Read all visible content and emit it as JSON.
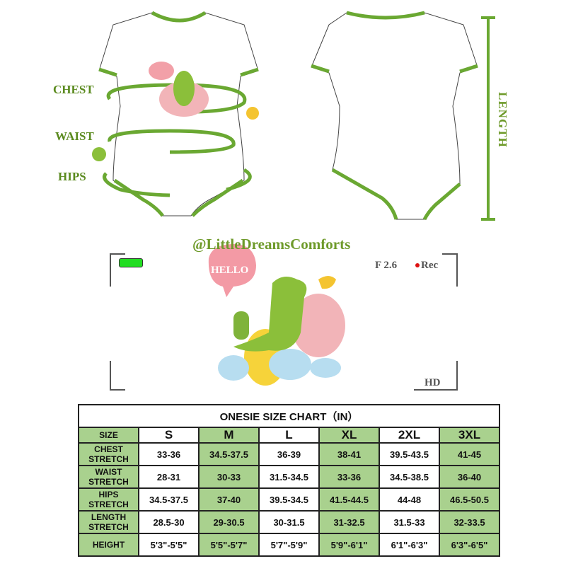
{
  "illustration": {
    "labels": {
      "chest": "CHEST",
      "waist": "WAIST",
      "hips": "HIPS",
      "length": "LENGTH"
    },
    "speech_bubble": "HELLO",
    "handle": "@LittleDreamsComforts",
    "viewfinder": {
      "aperture": "F 2.6",
      "rec": "Rec",
      "quality": "HD",
      "battery_color": "#22dd22",
      "rec_color": "#dd1111"
    },
    "trim_color": "#6aa832"
  },
  "size_chart": {
    "title": "ONESIE SIZE CHART（IN）",
    "header": {
      "label": "SIZE",
      "sizes": [
        "S",
        "M",
        "L",
        "XL",
        "2XL",
        "3XL"
      ]
    },
    "rows": [
      {
        "label": "CHEST STRETCH",
        "values": [
          "33-36",
          "34.5-37.5",
          "36-39",
          "38-41",
          "39.5-43.5",
          "41-45"
        ]
      },
      {
        "label": "WAIST STRETCH",
        "values": [
          "28-31",
          "30-33",
          "31.5-34.5",
          "33-36",
          "34.5-38.5",
          "36-40"
        ]
      },
      {
        "label": "HIPS STRETCH",
        "values": [
          "34.5-37.5",
          "37-40",
          "39.5-34.5",
          "41.5-44.5",
          "44-48",
          "46.5-50.5"
        ]
      },
      {
        "label": "LENGTH STRETCH",
        "values": [
          "28.5-30",
          "29-30.5",
          "30-31.5",
          "31-32.5",
          "31.5-33",
          "32-33.5"
        ]
      },
      {
        "label": "HEIGHT",
        "values": [
          "5'3\"-5'5\"",
          "5'5\"-5'7\"",
          "5'7\"-5'9\"",
          "5'9\"-6'1\"",
          "6'1\"-6'3\"",
          "6'3\"-6'5\""
        ]
      }
    ],
    "green": "#a9d18e"
  }
}
